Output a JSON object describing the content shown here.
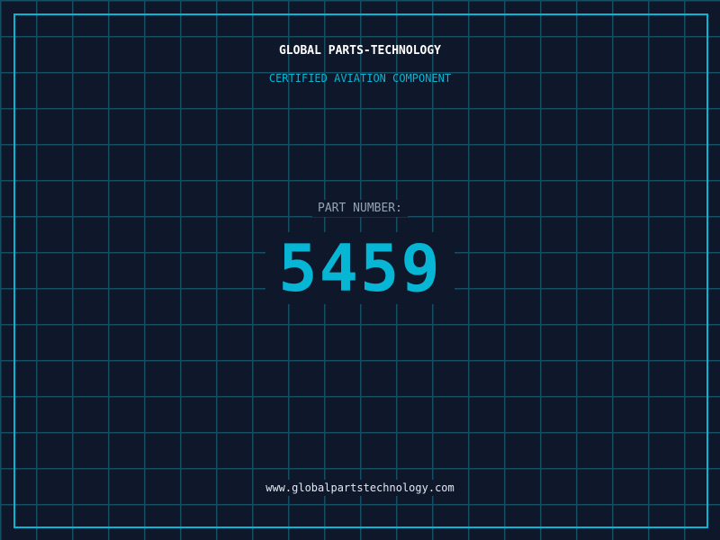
{
  "header": {
    "company": "GLOBAL PARTS-TECHNOLOGY",
    "subtitle": "CERTIFIED AVIATION COMPONENT"
  },
  "part": {
    "label": "PART NUMBER:",
    "number": "5459"
  },
  "footer": {
    "url": "www.globalpartstechnology.com"
  },
  "colors": {
    "background": "#0f172a",
    "accent": "#06b6d4",
    "grid": "#164e63"
  }
}
